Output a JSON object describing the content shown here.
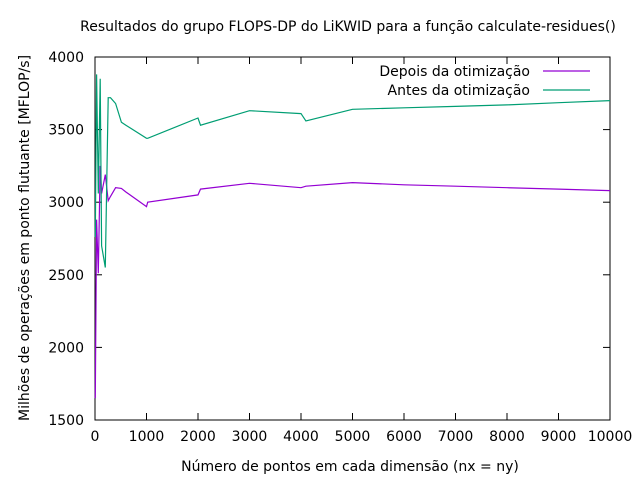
{
  "chart_data": {
    "type": "line",
    "title": "Resultados do grupo FLOPS-DP do LiKWID para a função calculate-residues()",
    "xlabel": "Número de pontos em cada dimensão (nx = ny)",
    "ylabel": "Milhões de operações em ponto flutuante [MFLOP/s]",
    "xlim": [
      0,
      10000
    ],
    "ylim": [
      1500,
      4000
    ],
    "xticks": [
      "0",
      "1000",
      "2000",
      "3000",
      "4000",
      "5000",
      "6000",
      "7000",
      "8000",
      "9000",
      "10000"
    ],
    "yticks": [
      "1500",
      "2000",
      "2500",
      "3000",
      "3500",
      "4000"
    ],
    "grid": false,
    "legend_position": "top-right",
    "series": [
      {
        "name": "Depois da otimização",
        "color": "#9400d3",
        "points": [
          [
            5,
            1650
          ],
          [
            32,
            2880
          ],
          [
            64,
            2510
          ],
          [
            100,
            3250
          ],
          [
            128,
            3060
          ],
          [
            200,
            3190
          ],
          [
            256,
            3010
          ],
          [
            300,
            3040
          ],
          [
            400,
            3100
          ],
          [
            512,
            3095
          ],
          [
            600,
            3070
          ],
          [
            1000,
            2970
          ],
          [
            1024,
            3000
          ],
          [
            2000,
            3050
          ],
          [
            2048,
            3090
          ],
          [
            3000,
            3130
          ],
          [
            4000,
            3100
          ],
          [
            4096,
            3110
          ],
          [
            5000,
            3135
          ],
          [
            6000,
            3120
          ],
          [
            7000,
            3110
          ],
          [
            8000,
            3100
          ],
          [
            9000,
            3090
          ],
          [
            10000,
            3080
          ]
        ]
      },
      {
        "name": "Antes da otimização",
        "color": "#009e73",
        "points": [
          [
            5,
            2760
          ],
          [
            32,
            3880
          ],
          [
            64,
            3060
          ],
          [
            100,
            3850
          ],
          [
            128,
            2700
          ],
          [
            200,
            2550
          ],
          [
            256,
            3720
          ],
          [
            300,
            3720
          ],
          [
            400,
            3680
          ],
          [
            512,
            3550
          ],
          [
            600,
            3530
          ],
          [
            1000,
            3440
          ],
          [
            1024,
            3440
          ],
          [
            2000,
            3580
          ],
          [
            2048,
            3530
          ],
          [
            3000,
            3630
          ],
          [
            4000,
            3610
          ],
          [
            4096,
            3560
          ],
          [
            5000,
            3640
          ],
          [
            6000,
            3650
          ],
          [
            7000,
            3660
          ],
          [
            8000,
            3670
          ],
          [
            9000,
            3685
          ],
          [
            10000,
            3700
          ]
        ]
      }
    ]
  }
}
